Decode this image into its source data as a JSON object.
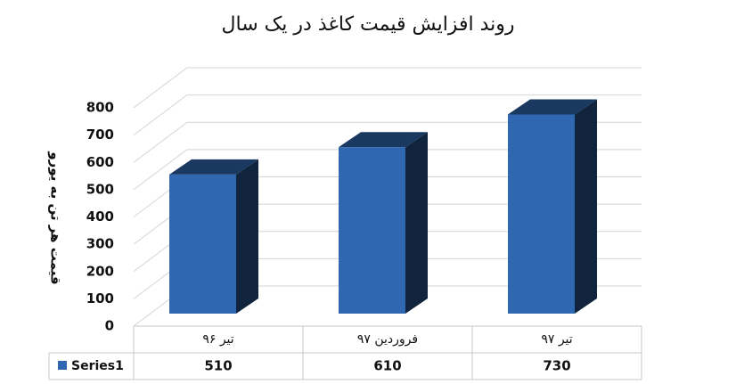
{
  "chart_data": {
    "type": "bar3d",
    "title": "روند افزایش قیمت کاغذ در یک سال",
    "y_label": "قیمت هر تن به یورو",
    "categories": [
      "تیر ۹۶",
      "فروردین ۹۷",
      "تیر ۹۷"
    ],
    "series": [
      {
        "name": "Series1",
        "color": "#2f67b1",
        "values": [
          510,
          610,
          730
        ]
      }
    ],
    "ylim": [
      0,
      800
    ],
    "yticks": [
      0,
      100,
      200,
      300,
      400,
      500,
      600,
      700,
      800
    ],
    "grid": true,
    "data_table": true
  }
}
